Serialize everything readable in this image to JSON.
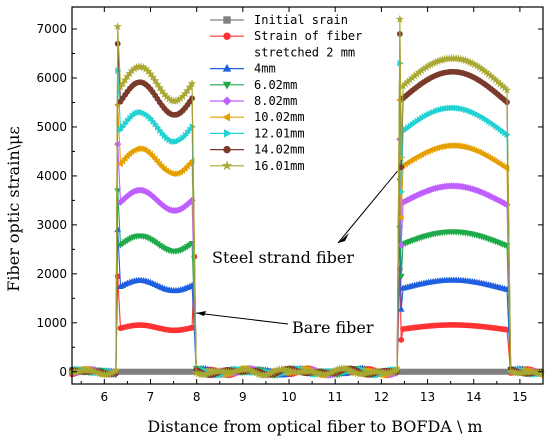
{
  "chart_data": {
    "type": "line",
    "xlabel": "Distance from optical fiber to BOFDA \\ m",
    "ylabel": "Fiber optic strain\\με",
    "xlim": [
      5.3,
      15.5
    ],
    "ylim": [
      -250,
      7450
    ],
    "x_ticks": [
      6,
      7,
      8,
      9,
      10,
      11,
      12,
      13,
      14,
      15
    ],
    "y_ticks": [
      0,
      1000,
      2000,
      3000,
      4000,
      5000,
      6000,
      7000
    ],
    "grid": false,
    "legend_position": "top-right",
    "segments": {
      "left": [
        6.3,
        7.95
      ],
      "right": [
        12.45,
        14.75
      ]
    },
    "series": [
      {
        "name": "Initial srain",
        "color": "#808080",
        "marker": "square",
        "left": 0,
        "right": 0,
        "left_peak": 0,
        "right_peak": 0
      },
      {
        "name": "Strain of fiber stretched 2 mm",
        "color": "#ff3333",
        "marker": "circle",
        "left": 900,
        "right": 870,
        "left_peak": 1950,
        "right_peak": 2100,
        "left_end": 2350
      },
      {
        "name": "4mm",
        "color": "#1f5fe0",
        "marker": "triangle-up",
        "left": 1760,
        "right": 1700,
        "left_peak": 2900,
        "right_peak": 3000
      },
      {
        "name": "6.02mm",
        "color": "#1faa4a",
        "marker": "triangle-down",
        "left": 2620,
        "right": 2600,
        "left_peak": 3700,
        "right_peak": 3900
      },
      {
        "name": "8.02mm",
        "color": "#bf5fff",
        "marker": "diamond",
        "left": 3500,
        "right": 3450,
        "left_peak": 4650,
        "right_peak": 4750
      },
      {
        "name": "10.02mm",
        "color": "#e5a000",
        "marker": "triangle-left",
        "left": 4300,
        "right": 4200,
        "left_peak": 5450,
        "right_peak": 5550
      },
      {
        "name": "12.01mm",
        "color": "#22d2d2",
        "marker": "triangle-right",
        "left": 5000,
        "right": 4900,
        "left_peak": 6150,
        "right_peak": 6300
      },
      {
        "name": "14.02mm",
        "color": "#7a3b2a",
        "marker": "circle",
        "left": 5580,
        "right": 5570,
        "left_peak": 6700,
        "right_peak": 6900
      },
      {
        "name": "16.01mm",
        "color": "#a8a832",
        "marker": "star",
        "left": 5880,
        "right": 5820,
        "left_peak": 7050,
        "right_peak": 7200
      }
    ],
    "annotations": [
      {
        "text": "Steel strand  fiber",
        "points_to": [
          12.35,
          4100
        ]
      },
      {
        "text": "Bare fiber",
        "points_to": [
          7.9,
          1200
        ]
      }
    ]
  }
}
